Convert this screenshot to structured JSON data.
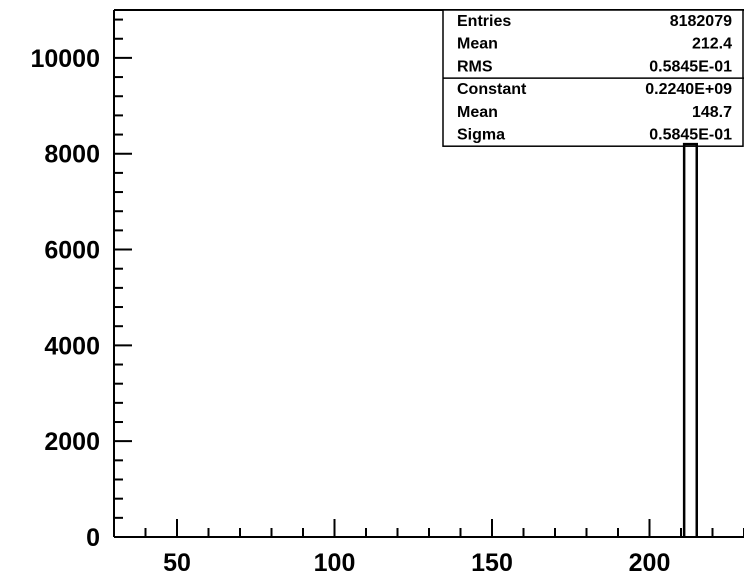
{
  "chart_data": {
    "type": "histogram",
    "title": "",
    "xlabel": "",
    "ylabel": "",
    "xlim": [
      30,
      230
    ],
    "ylim": [
      0,
      11000
    ],
    "x_ticks": [
      50,
      100,
      150,
      200
    ],
    "y_ticks": [
      0,
      2000,
      4000,
      6000,
      8000,
      10000
    ],
    "x_tick_labels": [
      "50",
      "100",
      "150",
      "200"
    ],
    "y_tick_labels": [
      "0",
      "2000",
      "4000",
      "6000",
      "8000",
      "10000"
    ],
    "bins": [
      {
        "low": 211.0,
        "high": 215.0,
        "value": 8200
      }
    ],
    "grid": false,
    "stats_box": {
      "placement": "top-right",
      "rows": [
        {
          "label": "Entries",
          "value": "8182079"
        },
        {
          "label": "Mean",
          "value": "212.4"
        },
        {
          "label": "RMS",
          "value": "0.5845E-01"
        },
        {
          "label": "Constant",
          "value": "0.2240E+09"
        },
        {
          "label": "Mean",
          "value": "148.7"
        },
        {
          "label": "Sigma",
          "value": "0.5845E-01"
        }
      ]
    }
  }
}
